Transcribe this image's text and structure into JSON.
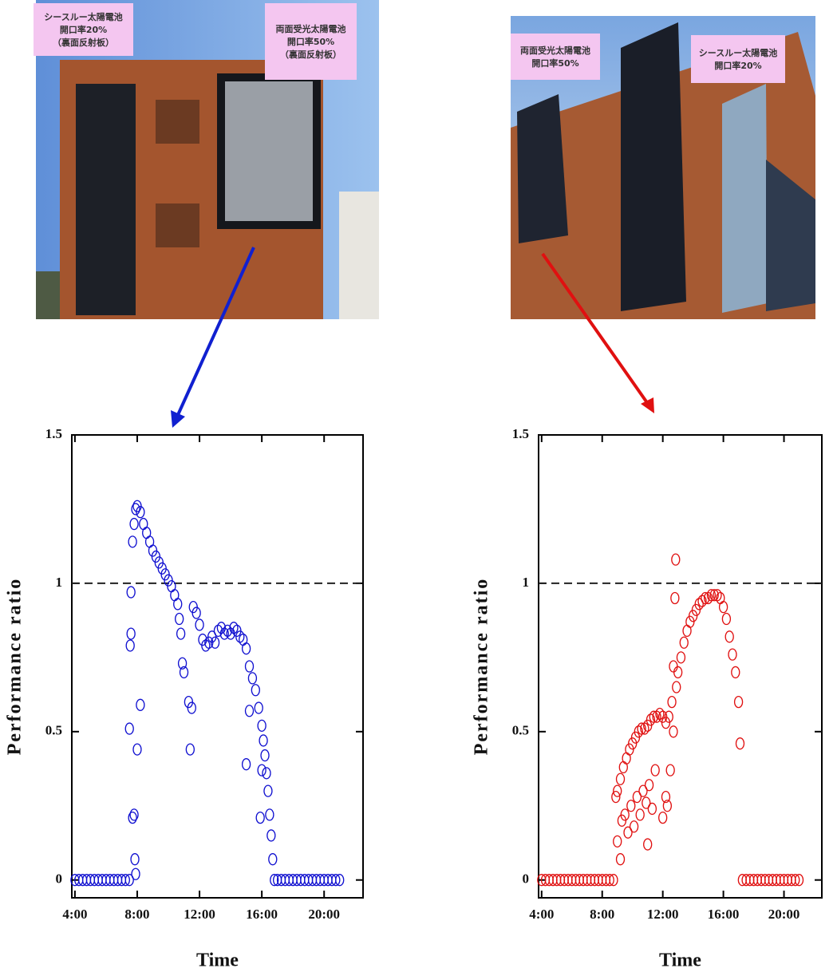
{
  "photos": [
    {
      "labels": [
        [
          "シースルー太陽電池",
          "開口率20%",
          "（裏面反射板）"
        ],
        [
          "両面受光太陽電池",
          "開口率50%",
          "（裏面反射板）"
        ]
      ]
    },
    {
      "labels": [
        [
          "両面受光太陽電池",
          "開口率50%"
        ],
        [
          "シースルー太陽電池",
          "開口率20%"
        ]
      ]
    }
  ],
  "chart_data": [
    {
      "type": "scatter",
      "x_label": "Time",
      "y_label": "Performance ratio",
      "color": "#1010d0",
      "marker": "open-circle",
      "xlim": [
        3.8,
        22.5
      ],
      "ylim": [
        -0.06,
        1.5
      ],
      "xticks": [
        {
          "value": 4,
          "label": "4:00"
        },
        {
          "value": 8,
          "label": "8:00"
        },
        {
          "value": 12,
          "label": "12:00"
        },
        {
          "value": 16,
          "label": "16:00"
        },
        {
          "value": 20,
          "label": "20:00"
        }
      ],
      "yticks": [
        0,
        0.5,
        1,
        1.5
      ],
      "reference_line": 1,
      "x": [
        4.0,
        4.25,
        4.5,
        4.75,
        5.0,
        5.25,
        5.5,
        5.75,
        6.0,
        6.25,
        6.5,
        6.75,
        7.0,
        7.25,
        7.5,
        7.5,
        7.55,
        7.6,
        7.6,
        7.7,
        7.7,
        7.8,
        7.85,
        7.9,
        8.0,
        8.2,
        7.8,
        7.9,
        8.0,
        8.2,
        8.4,
        8.6,
        8.8,
        9.0,
        9.2,
        9.4,
        9.6,
        9.8,
        10.0,
        10.2,
        10.4,
        10.6,
        10.7,
        10.8,
        10.9,
        11.0,
        11.3,
        11.5,
        11.4,
        11.6,
        11.8,
        12.0,
        12.2,
        12.4,
        12.6,
        12.8,
        13.0,
        13.2,
        13.4,
        13.6,
        13.8,
        14.0,
        14.2,
        14.4,
        14.6,
        14.8,
        15.0,
        15.0,
        15.2,
        15.4,
        15.6,
        15.8,
        16.0,
        16.1,
        16.2,
        16.3,
        16.4,
        16.5,
        16.6,
        16.7,
        15.9,
        16.0,
        15.2,
        16.8,
        17.0,
        17.25,
        17.5,
        17.75,
        18.0,
        18.25,
        18.5,
        18.75,
        19.0,
        19.25,
        19.5,
        19.75,
        20.0,
        20.25,
        20.5,
        20.75,
        21.0
      ],
      "values": [
        0,
        0,
        0,
        0,
        0,
        0,
        0,
        0,
        0,
        0,
        0,
        0,
        0,
        0,
        0,
        0.51,
        0.79,
        0.83,
        0.97,
        1.14,
        0.21,
        0.22,
        0.07,
        0.02,
        0.44,
        0.59,
        1.2,
        1.25,
        1.26,
        1.24,
        1.2,
        1.17,
        1.14,
        1.11,
        1.09,
        1.07,
        1.05,
        1.03,
        1.01,
        0.99,
        0.96,
        0.93,
        0.88,
        0.83,
        0.73,
        0.7,
        0.6,
        0.58,
        0.44,
        0.92,
        0.9,
        0.86,
        0.81,
        0.79,
        0.8,
        0.82,
        0.8,
        0.84,
        0.85,
        0.83,
        0.84,
        0.83,
        0.85,
        0.84,
        0.82,
        0.81,
        0.78,
        0.39,
        0.72,
        0.68,
        0.64,
        0.58,
        0.52,
        0.47,
        0.42,
        0.36,
        0.3,
        0.22,
        0.15,
        0.07,
        0.21,
        0.37,
        0.57,
        0,
        0,
        0,
        0,
        0,
        0,
        0,
        0,
        0,
        0,
        0,
        0,
        0,
        0,
        0,
        0,
        0,
        0
      ]
    },
    {
      "type": "scatter",
      "x_label": "Time",
      "y_label": "Performance ratio",
      "color": "#e01010",
      "marker": "open-circle",
      "xlim": [
        3.8,
        22.5
      ],
      "ylim": [
        -0.06,
        1.5
      ],
      "xticks": [
        {
          "value": 4,
          "label": "4:00"
        },
        {
          "value": 8,
          "label": "8:00"
        },
        {
          "value": 12,
          "label": "12:00"
        },
        {
          "value": 16,
          "label": "16:00"
        },
        {
          "value": 20,
          "label": "20:00"
        }
      ],
      "yticks": [
        0,
        0.5,
        1,
        1.5
      ],
      "reference_line": 1,
      "x": [
        4.0,
        4.25,
        4.5,
        4.75,
        5.0,
        5.25,
        5.5,
        5.75,
        6.0,
        6.25,
        6.5,
        6.75,
        7.0,
        7.25,
        7.5,
        7.75,
        8.0,
        8.25,
        8.5,
        8.75,
        8.9,
        9.0,
        9.2,
        9.4,
        9.6,
        9.8,
        10.0,
        10.2,
        10.4,
        10.6,
        10.8,
        11.0,
        11.2,
        11.4,
        11.6,
        11.8,
        12.0,
        12.2,
        12.4,
        12.6,
        12.7,
        12.8,
        12.85,
        12.9,
        13.0,
        13.2,
        13.4,
        13.6,
        13.8,
        14.0,
        14.2,
        14.4,
        14.6,
        14.8,
        15.0,
        15.2,
        15.4,
        15.6,
        15.8,
        16.0,
        16.2,
        16.4,
        16.6,
        16.8,
        17.0,
        17.1,
        9.0,
        9.2,
        9.3,
        9.5,
        9.7,
        9.9,
        10.1,
        10.3,
        10.5,
        10.7,
        10.9,
        11.0,
        11.1,
        11.3,
        11.5,
        12.0,
        12.2,
        12.3,
        12.5,
        12.7,
        17.25,
        17.5,
        17.75,
        18.0,
        18.25,
        18.5,
        18.75,
        19.0,
        19.25,
        19.5,
        19.75,
        20.0,
        20.25,
        20.5,
        20.75,
        21.0
      ],
      "values": [
        0,
        0,
        0,
        0,
        0,
        0,
        0,
        0,
        0,
        0,
        0,
        0,
        0,
        0,
        0,
        0,
        0,
        0,
        0,
        0,
        0.28,
        0.3,
        0.34,
        0.38,
        0.41,
        0.44,
        0.46,
        0.48,
        0.5,
        0.51,
        0.51,
        0.52,
        0.54,
        0.55,
        0.55,
        0.56,
        0.55,
        0.53,
        0.55,
        0.6,
        0.72,
        0.95,
        1.08,
        0.65,
        0.7,
        0.75,
        0.8,
        0.84,
        0.87,
        0.89,
        0.91,
        0.93,
        0.94,
        0.95,
        0.95,
        0.96,
        0.96,
        0.96,
        0.95,
        0.92,
        0.88,
        0.82,
        0.76,
        0.7,
        0.6,
        0.46,
        0.13,
        0.07,
        0.2,
        0.22,
        0.16,
        0.25,
        0.18,
        0.28,
        0.22,
        0.3,
        0.26,
        0.12,
        0.32,
        0.24,
        0.37,
        0.21,
        0.28,
        0.25,
        0.37,
        0.5,
        0,
        0,
        0,
        0,
        0,
        0,
        0,
        0,
        0,
        0,
        0,
        0,
        0,
        0,
        0,
        0
      ]
    }
  ]
}
